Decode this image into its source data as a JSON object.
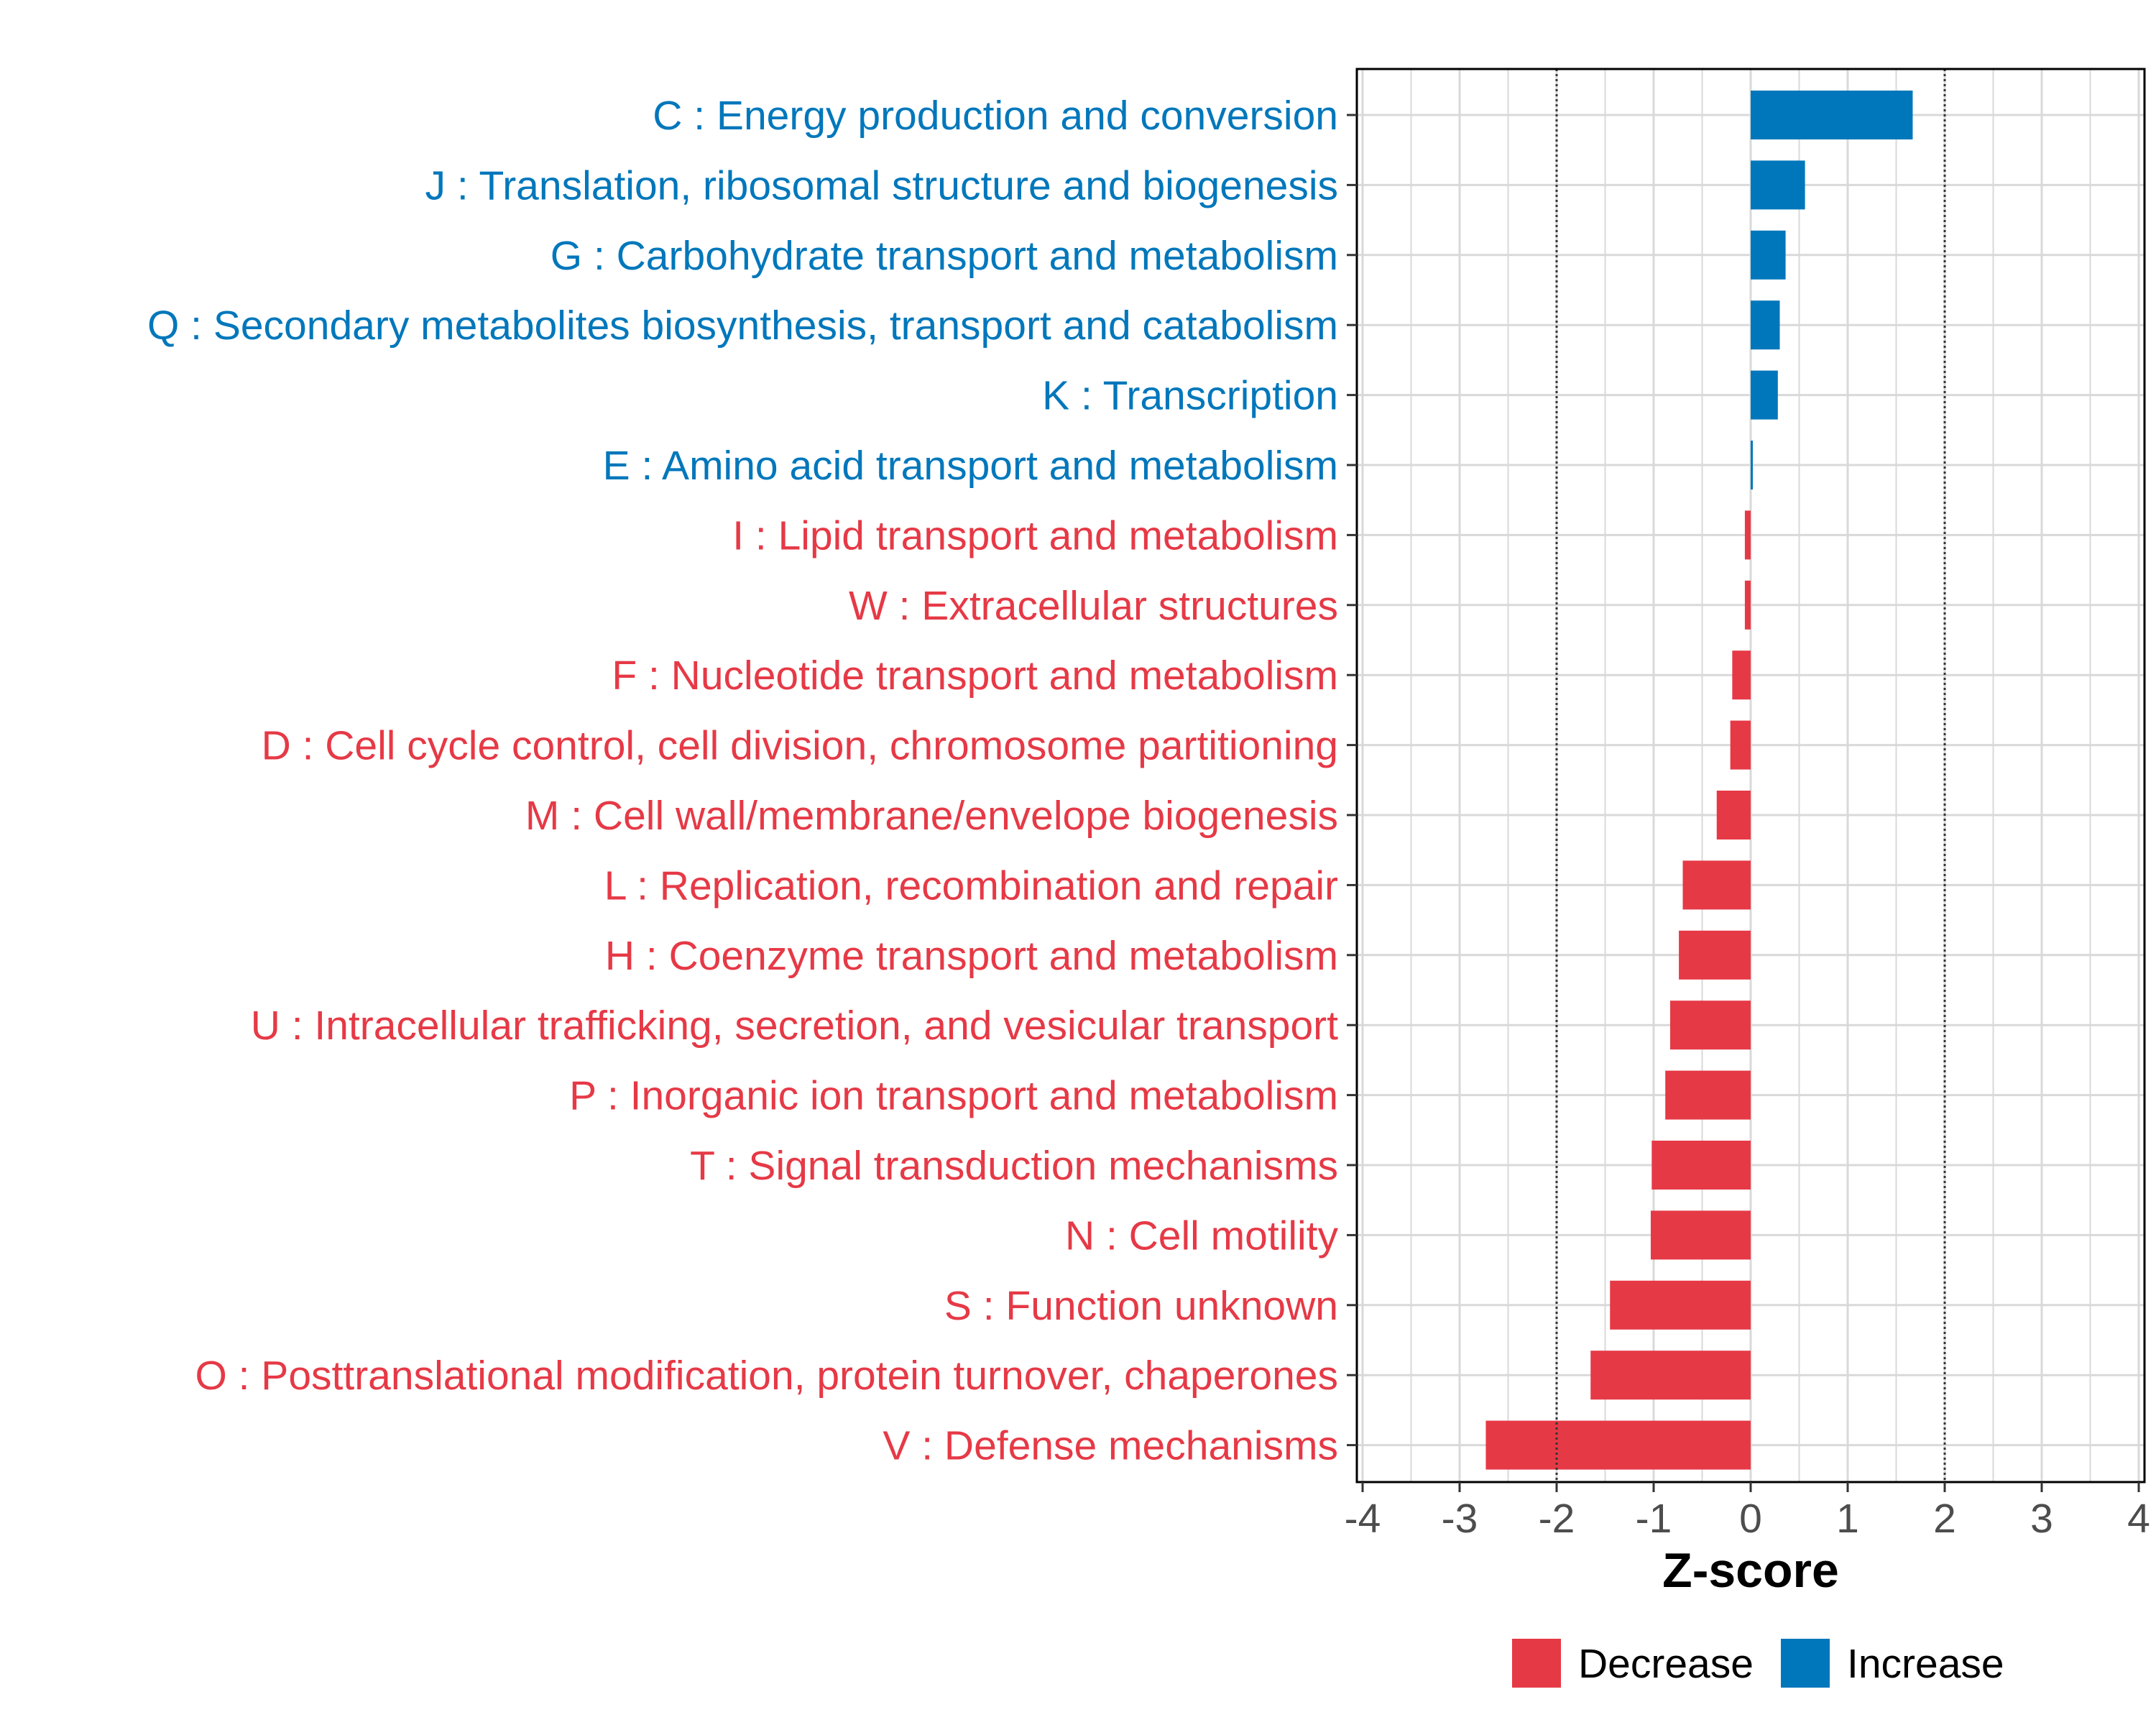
{
  "chart_data": {
    "type": "bar",
    "orientation": "horizontal",
    "title": "",
    "xlabel": "Z-score",
    "ylabel": "",
    "xlim": [
      -4,
      4
    ],
    "xticks": [
      -4,
      -3,
      -2,
      -1,
      0,
      1,
      2,
      3,
      4
    ],
    "xtick_labels": [
      "-4",
      "-3",
      "-2",
      "-1",
      "0",
      "1",
      "2",
      "3",
      "4"
    ],
    "threshold_lines": [
      -2,
      2
    ],
    "grid": true,
    "categories": [
      "C : Energy production and conversion",
      "J : Translation, ribosomal structure and biogenesis",
      "G : Carbohydrate transport and metabolism",
      "Q : Secondary metabolites biosynthesis, transport and catabolism",
      "K : Transcription",
      "E : Amino acid transport and metabolism",
      "I : Lipid transport and metabolism",
      "W : Extracellular structures",
      "F : Nucleotide transport and metabolism",
      "D : Cell cycle control, cell division, chromosome partitioning",
      "M : Cell wall/membrane/envelope biogenesis",
      "L : Replication, recombination and repair",
      "H : Coenzyme transport and metabolism",
      "U : Intracellular trafficking, secretion, and vesicular transport",
      "P : Inorganic ion transport and metabolism",
      "T : Signal transduction mechanisms",
      "N : Cell motility",
      "S : Function unknown",
      "O : Posttranslational modification, protein turnover, chaperones",
      "V : Defense mechanisms"
    ],
    "values": [
      1.67,
      0.56,
      0.36,
      0.3,
      0.28,
      0.02,
      -0.06,
      -0.06,
      -0.19,
      -0.21,
      -0.35,
      -0.7,
      -0.74,
      -0.83,
      -0.88,
      -1.02,
      -1.03,
      -1.45,
      -1.65,
      -2.73
    ],
    "groups": [
      "Increase",
      "Increase",
      "Increase",
      "Increase",
      "Increase",
      "Increase",
      "Decrease",
      "Decrease",
      "Decrease",
      "Decrease",
      "Decrease",
      "Decrease",
      "Decrease",
      "Decrease",
      "Decrease",
      "Decrease",
      "Decrease",
      "Decrease",
      "Decrease",
      "Decrease"
    ],
    "legend": {
      "placement": "bottom-right",
      "entries": [
        {
          "name": "Decrease",
          "color": "#e63946"
        },
        {
          "name": "Increase",
          "color": "#0077bb"
        }
      ]
    },
    "colors": {
      "Decrease": "#e63946",
      "Increase": "#0077bb",
      "grid": "#d9d9d9",
      "threshold": "#333333",
      "frame": "#000000"
    }
  }
}
